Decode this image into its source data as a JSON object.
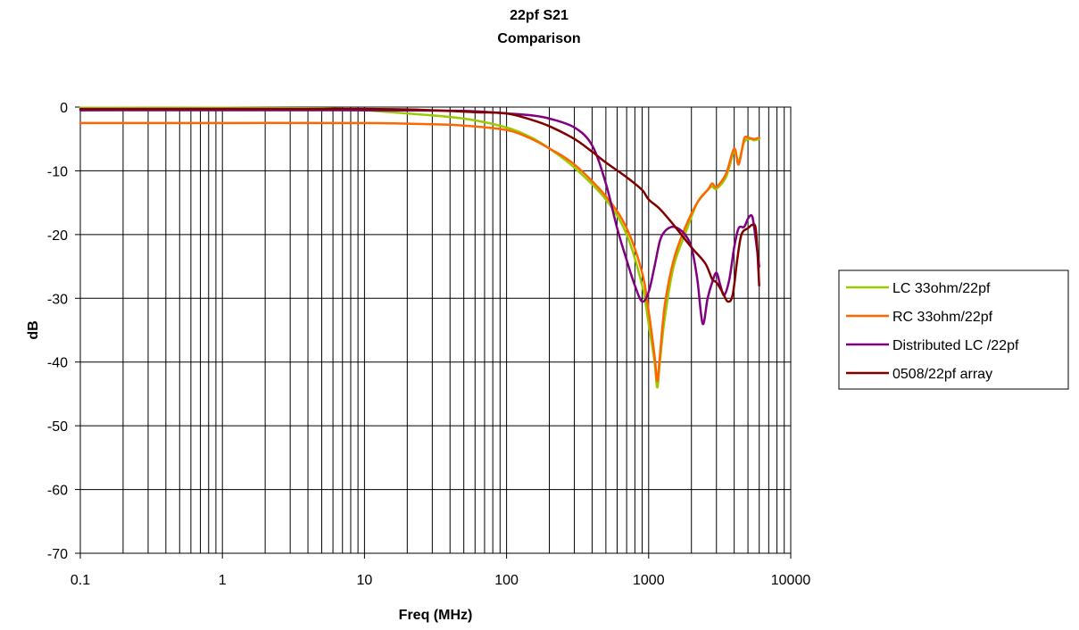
{
  "chart_data": {
    "type": "line",
    "title_lines": [
      "22pf S21",
      "Comparison"
    ],
    "xlabel": "Freq (MHz)",
    "ylabel": "dB",
    "xscale": "log",
    "xlim": [
      0.1,
      10000
    ],
    "ylim": [
      -70,
      0
    ],
    "xticks": [
      "0.1",
      "1",
      "10",
      "100",
      "1000",
      "10000"
    ],
    "yticks": [
      "0",
      "-10",
      "-20",
      "-30",
      "-40",
      "-50",
      "-60",
      "-70"
    ],
    "grid": true,
    "legend_position": "right",
    "series": [
      {
        "name": "LC 33ohm/22pf",
        "color": "#99CC00",
        "points": [
          [
            0.1,
            -0.1
          ],
          [
            1,
            -0.1
          ],
          [
            5,
            -0.2
          ],
          [
            10,
            -0.5
          ],
          [
            20,
            -1
          ],
          [
            50,
            -1.8
          ],
          [
            100,
            -3.2
          ],
          [
            150,
            -4.8
          ],
          [
            200,
            -6.5
          ],
          [
            300,
            -9.5
          ],
          [
            500,
            -14.5
          ],
          [
            700,
            -20
          ],
          [
            900,
            -28
          ],
          [
            1000,
            -34
          ],
          [
            1100,
            -40
          ],
          [
            1150,
            -44
          ],
          [
            1200,
            -40
          ],
          [
            1300,
            -33
          ],
          [
            1500,
            -25
          ],
          [
            1800,
            -20
          ],
          [
            2200,
            -15
          ],
          [
            2600,
            -13
          ],
          [
            2800,
            -12.5
          ],
          [
            3000,
            -12.8
          ],
          [
            3500,
            -11
          ],
          [
            4000,
            -7
          ],
          [
            4300,
            -8.5
          ],
          [
            4700,
            -5.5
          ],
          [
            5200,
            -5
          ],
          [
            5500,
            -5.2
          ],
          [
            6000,
            -5
          ]
        ]
      },
      {
        "name": "RC 33ohm/22pf",
        "color": "#FF6600",
        "points": [
          [
            0.1,
            -2.5
          ],
          [
            1,
            -2.5
          ],
          [
            10,
            -2.5
          ],
          [
            30,
            -2.7
          ],
          [
            50,
            -2.9
          ],
          [
            100,
            -3.6
          ],
          [
            150,
            -5
          ],
          [
            200,
            -6.5
          ],
          [
            300,
            -9
          ],
          [
            500,
            -14
          ],
          [
            700,
            -19
          ],
          [
            900,
            -26
          ],
          [
            1000,
            -32
          ],
          [
            1100,
            -39
          ],
          [
            1150,
            -43
          ],
          [
            1200,
            -39
          ],
          [
            1300,
            -31
          ],
          [
            1500,
            -24
          ],
          [
            1800,
            -19
          ],
          [
            2200,
            -15
          ],
          [
            2600,
            -13
          ],
          [
            2800,
            -12
          ],
          [
            3000,
            -12.5
          ],
          [
            3500,
            -10.5
          ],
          [
            4000,
            -6.5
          ],
          [
            4300,
            -9
          ],
          [
            4700,
            -5
          ],
          [
            5000,
            -4.8
          ],
          [
            5500,
            -5
          ],
          [
            6000,
            -4.8
          ]
        ]
      },
      {
        "name": "Distributed LC /22pf",
        "color": "#800080",
        "points": [
          [
            0.1,
            -0.5
          ],
          [
            10,
            -0.5
          ],
          [
            50,
            -0.6
          ],
          [
            100,
            -1
          ],
          [
            150,
            -1.3
          ],
          [
            200,
            -1.8
          ],
          [
            300,
            -3.2
          ],
          [
            400,
            -6
          ],
          [
            500,
            -12
          ],
          [
            600,
            -19
          ],
          [
            700,
            -24
          ],
          [
            800,
            -28
          ],
          [
            900,
            -30.5
          ],
          [
            1000,
            -29
          ],
          [
            1100,
            -25
          ],
          [
            1200,
            -21
          ],
          [
            1300,
            -19.5
          ],
          [
            1450,
            -18.8
          ],
          [
            1600,
            -19
          ],
          [
            1800,
            -20
          ],
          [
            2000,
            -22
          ],
          [
            2200,
            -27
          ],
          [
            2400,
            -34
          ],
          [
            2600,
            -30
          ],
          [
            2800,
            -27.5
          ],
          [
            3000,
            -26
          ],
          [
            3200,
            -28
          ],
          [
            3400,
            -29.5
          ],
          [
            3700,
            -27
          ],
          [
            4000,
            -22
          ],
          [
            4300,
            -19
          ],
          [
            4700,
            -18.8
          ],
          [
            5000,
            -17.5
          ],
          [
            5300,
            -17
          ],
          [
            5500,
            -18.5
          ],
          [
            6000,
            -25
          ]
        ]
      },
      {
        "name": "0508/22pf array",
        "color": "#800000",
        "points": [
          [
            0.1,
            -0.3
          ],
          [
            10,
            -0.3
          ],
          [
            30,
            -0.5
          ],
          [
            60,
            -0.8
          ],
          [
            100,
            -1
          ],
          [
            150,
            -2
          ],
          [
            200,
            -3
          ],
          [
            300,
            -5
          ],
          [
            400,
            -7
          ],
          [
            500,
            -8.7
          ],
          [
            700,
            -11
          ],
          [
            900,
            -13
          ],
          [
            1000,
            -14.5
          ],
          [
            1200,
            -16
          ],
          [
            1500,
            -18.5
          ],
          [
            2000,
            -22
          ],
          [
            2500,
            -24.5
          ],
          [
            2800,
            -27
          ],
          [
            3000,
            -27.5
          ],
          [
            3300,
            -29
          ],
          [
            3600,
            -30.5
          ],
          [
            3900,
            -29.5
          ],
          [
            4200,
            -24
          ],
          [
            4500,
            -20
          ],
          [
            5000,
            -19
          ],
          [
            5400,
            -18.5
          ],
          [
            5700,
            -19.5
          ],
          [
            6000,
            -28
          ]
        ]
      }
    ]
  }
}
